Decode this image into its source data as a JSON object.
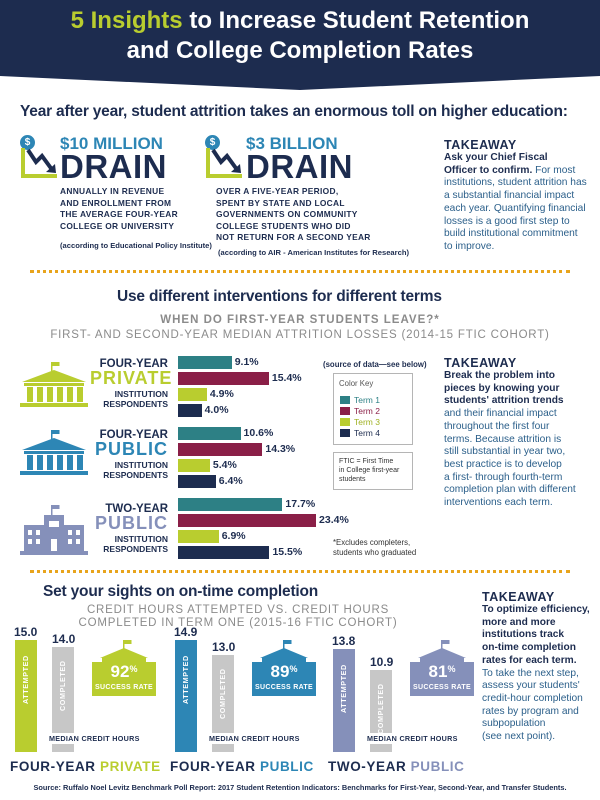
{
  "header": {
    "title_highlight": "5 Insights",
    "title_rest1": " to Increase Student Retention",
    "title_line2": "and College Completion Rates"
  },
  "section1": {
    "heading": "Year after year, student attrition takes an enormous toll on higher education:",
    "drain1": {
      "amount": "$10 MILLION",
      "word": "DRAIN",
      "desc": [
        "ANNUALLY IN REVENUE",
        "AND ENROLLMENT FROM",
        "THE AVERAGE FOUR-YEAR",
        "COLLEGE OR UNIVERSITY"
      ],
      "source": "(according to Educational Policy Institute)"
    },
    "drain2": {
      "amount": "$3 BILLION",
      "word": "DRAIN",
      "desc": [
        "OVER A FIVE-YEAR PERIOD,",
        "SPENT BY STATE AND LOCAL",
        "GOVERNMENTS ON COMMUNITY",
        "COLLEGE STUDENTS WHO DID",
        "NOT RETURN FOR A SECOND YEAR"
      ],
      "source": "(according to AIR - American Institutes for Research)"
    },
    "takeaway_title": "TAKEAWAY",
    "takeaway_bold": [
      "Ask your Chief Fiscal",
      "Officer to confirm."
    ],
    "takeaway_body": [
      "For most",
      "institutions, student attrition has",
      "a substantial financial impact",
      "each year. Quantifying financial",
      "losses is a good first step to",
      "build institutional commitment",
      "to improve."
    ]
  },
  "section2": {
    "heading": "Use different interventions for different terms",
    "sub1": "WHEN DO FIRST-YEAR STUDENTS LEAVE?*",
    "sub2": "FIRST- AND SECOND-YEAR MEDIAN ATTRITION LOSSES (2014-15 FTIC COHORT)",
    "source_note": "(source of data—see below)",
    "color_key_title": "Color Key",
    "color_key": [
      {
        "label": "Term 1",
        "color": "#2d8085"
      },
      {
        "label": "Term 2",
        "color": "#8a1f47"
      },
      {
        "label": "Term 3",
        "color": "#b9cd2f"
      },
      {
        "label": "Term 4",
        "color": "#1d2c4f"
      }
    ],
    "ftic_note": [
      "FTIC = First Time",
      "in College first-year",
      "students"
    ],
    "exclude_note": [
      "*Excludes completers,",
      "students who graduated"
    ],
    "groups": [
      {
        "l1": "FOUR-YEAR",
        "l2": "PRIVATE",
        "l3a": "INSTITUTION",
        "l3b": "RESPONDENTS",
        "color": "#b9cd2f",
        "values": [
          "9.1%",
          "15.4%",
          "4.9%",
          "4.0%"
        ]
      },
      {
        "l1": "FOUR-YEAR",
        "l2": "PUBLIC",
        "l3a": "INSTITUTION",
        "l3b": "RESPONDENTS",
        "color": "#2d86b5",
        "values": [
          "10.6%",
          "14.3%",
          "5.4%",
          "6.4%"
        ]
      },
      {
        "l1": "TWO-YEAR",
        "l2": "PUBLIC",
        "l3a": "INSTITUTION",
        "l3b": "RESPONDENTS",
        "color": "#8590ba",
        "values": [
          "17.7%",
          "23.4%",
          "6.9%",
          "15.5%"
        ]
      }
    ],
    "takeaway_title": "TAKEAWAY",
    "takeaway_bold": [
      "Break the problem into",
      "pieces by knowing your",
      "students' attrition trends"
    ],
    "takeaway_body": [
      "and their financial impact",
      "throughout the first four",
      "terms. Because attrition is",
      "still substantial in year two,",
      "best practice is to develop",
      "a first- through fourth-term",
      "completion plan with different",
      "interventions each term."
    ]
  },
  "section3": {
    "heading": "Set your sights on on-time completion",
    "sub1": "CREDIT HOURS ATTEMPTED VS. CREDIT HOURS",
    "sub2": "COMPLETED IN TERM ONE (2015-16 FTIC COHORT)",
    "attempted_label": "ATTEMPTED",
    "completed_label": "COMPLETED",
    "median_label": "MEDIAN CREDIT HOURS",
    "success_label": "SUCCESS RATE",
    "groups": [
      {
        "attempted": "15.0",
        "completed": "14.0",
        "rate": "92",
        "pct": "%",
        "l1": "FOUR-YEAR ",
        "l2": "PRIVATE",
        "color": "#b9cd2f"
      },
      {
        "attempted": "14.9",
        "completed": "13.0",
        "rate": "89",
        "pct": "%",
        "l1": "FOUR-YEAR ",
        "l2": "PUBLIC",
        "color": "#2d86b5"
      },
      {
        "attempted": "13.8",
        "completed": "10.9",
        "rate": "81",
        "pct": "%",
        "l1": "TWO-YEAR ",
        "l2": "PUBLIC",
        "color": "#8590ba"
      }
    ],
    "takeaway_title": "TAKEAWAY",
    "takeaway_bold": [
      "To optimize efficiency,",
      "more and more",
      "institutions track",
      "on-time completion",
      "rates for each term."
    ],
    "takeaway_body": [
      "To take the next step,",
      "assess your students'",
      "credit-hour completion",
      "rates by program and",
      "subpopulation",
      "(see next point)."
    ]
  },
  "footer": "Source: Ruffalo Noel Levitz Benchmark Poll Report: 2017 Student Retention Indicators: Benchmarks for First-Year, Second-Year, and Transfer Students.",
  "colors": {
    "navy": "#1d2c4f",
    "lime": "#b9cd2f",
    "blue": "#2d86b5",
    "periwinkle": "#8590ba",
    "teal": "#2d8085",
    "maroon": "#8a1f47",
    "orange": "#e8a41c",
    "gray": "#c7c7c7"
  }
}
